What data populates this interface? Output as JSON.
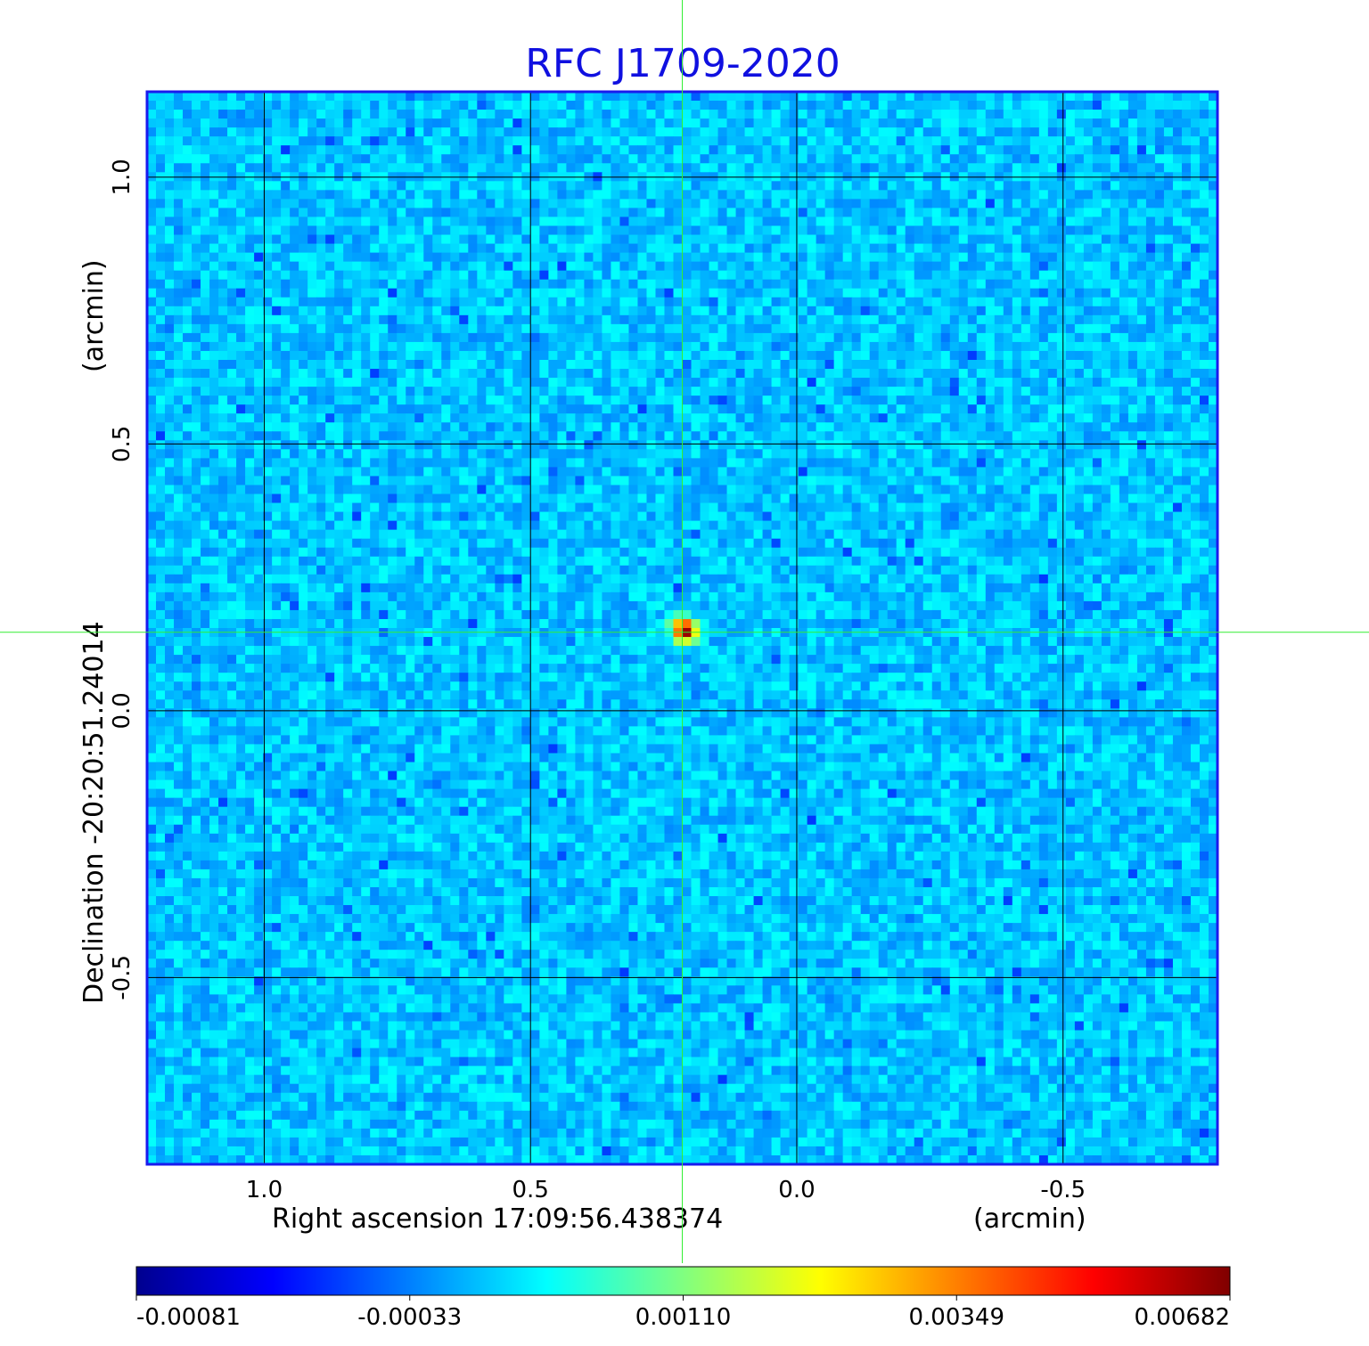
{
  "chart_data": {
    "type": "heatmap",
    "title": "RFC J1709-2020",
    "xlabel": "Right ascension  17:09:56.438374",
    "xunit": "(arcmin)",
    "ylabel": "Declination  -20:20:51.24014",
    "yunit": "(arcmin)",
    "xlim": [
      1.22,
      -0.79
    ],
    "ylim": [
      -0.85,
      1.16
    ],
    "x_ticks": [
      "1.0",
      "0.5",
      "0.0",
      "-0.5"
    ],
    "x_tick_values": [
      1.0,
      0.5,
      0.0,
      -0.5
    ],
    "y_ticks": [
      "1.0",
      "0.5",
      "0.0",
      "-0.5"
    ],
    "y_tick_values": [
      1.0,
      0.5,
      0.0,
      -0.5
    ],
    "grid": true,
    "colormap": "jet",
    "colorbar": {
      "ticks": [
        "-0.00081",
        "-0.00033",
        "0.00110",
        "0.00349",
        "0.00682"
      ],
      "range": [
        -0.00081,
        0.00682
      ]
    },
    "source": {
      "x": 0.21,
      "y": 0.15,
      "peak": 0.00682
    },
    "crosshair": {
      "x": 0.215,
      "y": 0.147
    },
    "colors": {
      "title": "#1010e0",
      "frame": "#1a1aee",
      "grid": "#000000",
      "crosshair": "#33ee33",
      "background_field": "#1ee6ff"
    }
  }
}
